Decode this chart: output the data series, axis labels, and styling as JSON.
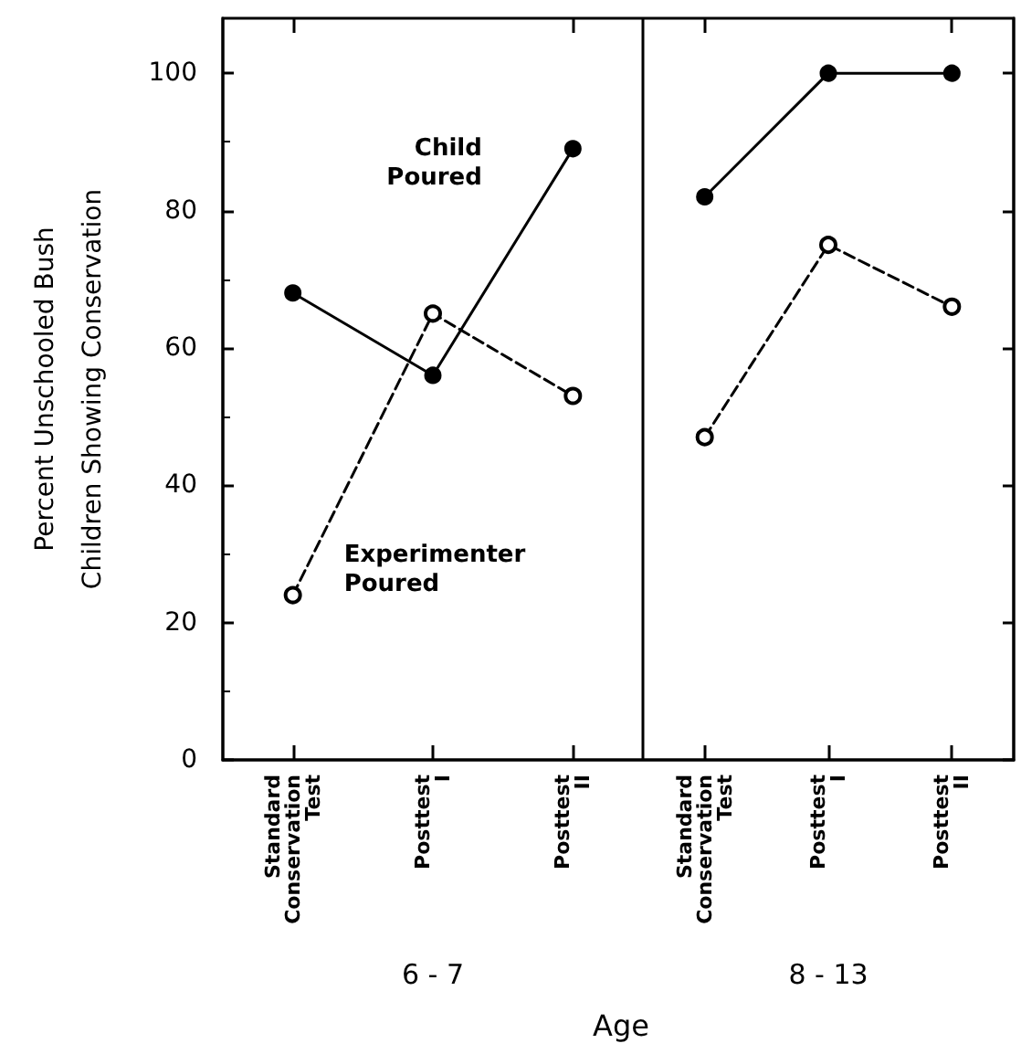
{
  "chart_data": [
    {
      "type": "line",
      "xlabel": "6 - 7",
      "ylabel": "Percent Unschooled Bush Children Showing Conservation",
      "categories": [
        "Standard Conservation Test",
        "Posttest I",
        "Posttest II"
      ],
      "series": [
        {
          "name": "Child Poured",
          "color": "#000000",
          "line_style": "solid",
          "values": [
            68,
            56,
            89
          ]
        },
        {
          "name": "Experimenter Poured",
          "color": "#000000",
          "line_style": "dashed",
          "values": [
            24,
            65,
            53
          ]
        }
      ],
      "ylim": [
        0,
        108
      ],
      "yticks": [
        0,
        20,
        40,
        60,
        80,
        100
      ],
      "marker": "circle",
      "grid": false,
      "legend": false,
      "annotations": [
        "Age"
      ]
    },
    {
      "type": "line",
      "xlabel": "8 - 13",
      "categories": [
        "Standard Conservation Test",
        "Posttest I",
        "Posttest II"
      ],
      "series": [
        {
          "color": "#000000",
          "line_style": "solid",
          "values": [
            82,
            100,
            100
          ]
        },
        {
          "color": "#000000",
          "line_style": "dashed",
          "values": [
            47,
            75,
            66
          ]
        }
      ],
      "ylim": [
        0,
        108
      ],
      "yticks": [
        0,
        20,
        40,
        60,
        80,
        100
      ],
      "marker": "circle",
      "grid": false,
      "legend": false,
      "tick_labels": "x"
    }
  ]
}
